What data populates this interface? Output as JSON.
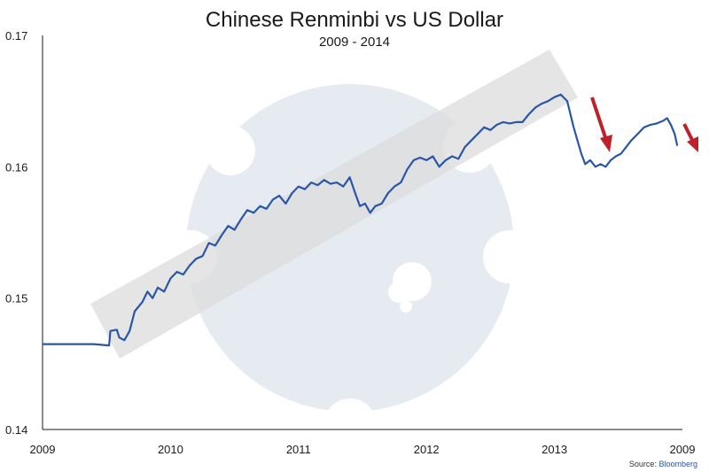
{
  "chart_data": {
    "type": "line",
    "title": "Chinese Renminbi vs US Dollar",
    "subtitle": "2009 - 2014",
    "xlabel": "",
    "ylabel": "",
    "x_ticks": [
      "2009",
      "2010",
      "2011",
      "2012",
      "2013",
      "2009"
    ],
    "y_ticks": [
      "0.17",
      "0.16",
      "0.15",
      "0.14"
    ],
    "ylim": [
      0.14,
      0.17
    ],
    "xlim": [
      2009.0,
      2014.0
    ],
    "grid": false,
    "source_label": "Source:",
    "source_name": "Bloomberg",
    "series": [
      {
        "color": "#2a56a6",
        "points": [
          [
            2009.0,
            0.1465
          ],
          [
            2009.2,
            0.1465
          ],
          [
            2009.4,
            0.1465
          ],
          [
            2009.52,
            0.1464
          ],
          [
            2009.53,
            0.1475
          ],
          [
            2009.58,
            0.1476
          ],
          [
            2009.6,
            0.147
          ],
          [
            2009.64,
            0.1468
          ],
          [
            2009.68,
            0.1475
          ],
          [
            2009.72,
            0.149
          ],
          [
            2009.78,
            0.1497
          ],
          [
            2009.82,
            0.1505
          ],
          [
            2009.86,
            0.15
          ],
          [
            2009.9,
            0.1508
          ],
          [
            2009.95,
            0.1505
          ],
          [
            2010.0,
            0.1515
          ],
          [
            2010.05,
            0.152
          ],
          [
            2010.1,
            0.1518
          ],
          [
            2010.15,
            0.1525
          ],
          [
            2010.2,
            0.153
          ],
          [
            2010.25,
            0.1532
          ],
          [
            2010.3,
            0.1542
          ],
          [
            2010.35,
            0.154
          ],
          [
            2010.4,
            0.1548
          ],
          [
            2010.45,
            0.1555
          ],
          [
            2010.5,
            0.1552
          ],
          [
            2010.55,
            0.156
          ],
          [
            2010.6,
            0.1567
          ],
          [
            2010.65,
            0.1565
          ],
          [
            2010.7,
            0.157
          ],
          [
            2010.75,
            0.1568
          ],
          [
            2010.8,
            0.1575
          ],
          [
            2010.85,
            0.1578
          ],
          [
            2010.9,
            0.1572
          ],
          [
            2010.95,
            0.158
          ],
          [
            2011.0,
            0.1585
          ],
          [
            2011.05,
            0.1583
          ],
          [
            2011.1,
            0.1588
          ],
          [
            2011.15,
            0.1586
          ],
          [
            2011.2,
            0.159
          ],
          [
            2011.25,
            0.1587
          ],
          [
            2011.3,
            0.1588
          ],
          [
            2011.35,
            0.1585
          ],
          [
            2011.4,
            0.1592
          ],
          [
            2011.45,
            0.1578
          ],
          [
            2011.48,
            0.157
          ],
          [
            2011.52,
            0.1572
          ],
          [
            2011.56,
            0.1565
          ],
          [
            2011.6,
            0.157
          ],
          [
            2011.65,
            0.1572
          ],
          [
            2011.7,
            0.158
          ],
          [
            2011.75,
            0.1585
          ],
          [
            2011.8,
            0.1588
          ],
          [
            2011.85,
            0.1598
          ],
          [
            2011.9,
            0.1605
          ],
          [
            2011.95,
            0.1607
          ],
          [
            2012.0,
            0.1605
          ],
          [
            2012.05,
            0.1608
          ],
          [
            2012.1,
            0.16
          ],
          [
            2012.15,
            0.1605
          ],
          [
            2012.2,
            0.1608
          ],
          [
            2012.25,
            0.1606
          ],
          [
            2012.3,
            0.1615
          ],
          [
            2012.35,
            0.162
          ],
          [
            2012.4,
            0.1625
          ],
          [
            2012.45,
            0.163
          ],
          [
            2012.5,
            0.1628
          ],
          [
            2012.55,
            0.1632
          ],
          [
            2012.6,
            0.1634
          ],
          [
            2012.65,
            0.1633
          ],
          [
            2012.7,
            0.1634
          ],
          [
            2012.75,
            0.1634
          ],
          [
            2012.8,
            0.164
          ],
          [
            2012.85,
            0.1645
          ],
          [
            2012.9,
            0.1648
          ],
          [
            2012.95,
            0.165
          ],
          [
            2013.0,
            0.1653
          ],
          [
            2013.05,
            0.1655
          ],
          [
            2013.1,
            0.165
          ],
          [
            2013.15,
            0.163
          ],
          [
            2013.18,
            0.162
          ],
          [
            2013.21,
            0.161
          ],
          [
            2013.24,
            0.1602
          ],
          [
            2013.28,
            0.1605
          ],
          [
            2013.32,
            0.16
          ],
          [
            2013.36,
            0.1602
          ],
          [
            2013.4,
            0.16
          ],
          [
            2013.44,
            0.1605
          ],
          [
            2013.48,
            0.1608
          ],
          [
            2013.52,
            0.161
          ],
          [
            2013.56,
            0.1615
          ],
          [
            2013.6,
            0.162
          ],
          [
            2013.65,
            0.1625
          ],
          [
            2013.7,
            0.163
          ],
          [
            2013.75,
            0.1632
          ],
          [
            2013.8,
            0.1633
          ],
          [
            2013.85,
            0.1635
          ],
          [
            2013.88,
            0.1637
          ],
          [
            2013.91,
            0.1632
          ],
          [
            2013.94,
            0.1625
          ],
          [
            2013.96,
            0.1616
          ]
        ]
      }
    ]
  }
}
